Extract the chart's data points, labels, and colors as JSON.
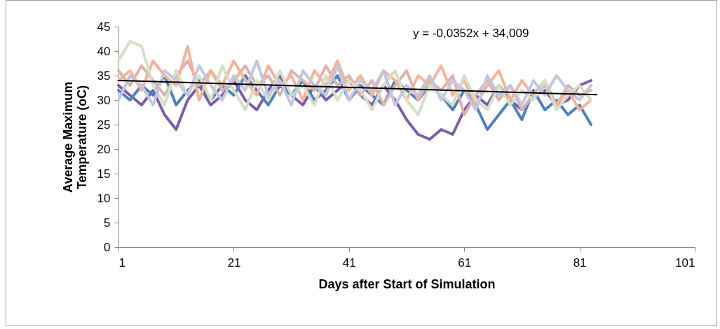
{
  "chart_data": {
    "type": "line",
    "xlabel": "Days after Start of Simulation",
    "ylabel": "Average Maximum Temperature (oC)",
    "x": [
      1,
      3,
      5,
      7,
      9,
      11,
      13,
      15,
      17,
      19,
      21,
      23,
      25,
      27,
      29,
      31,
      33,
      35,
      37,
      39,
      41,
      43,
      45,
      47,
      49,
      51,
      53,
      55,
      57,
      59,
      61,
      63,
      65,
      67,
      69,
      71,
      73,
      75,
      77,
      79,
      81,
      83
    ],
    "series": [
      {
        "color": "#7b5ea7",
        "values": [
          33,
          31,
          29,
          32,
          27,
          24,
          30,
          33,
          29,
          31,
          34,
          30,
          28,
          32,
          35,
          31,
          29,
          33,
          30,
          32,
          34,
          31,
          29,
          33,
          30,
          26,
          23,
          22,
          24,
          23,
          28,
          31,
          29,
          33,
          30,
          28,
          31,
          32,
          29,
          30,
          33,
          34
        ]
      },
      {
        "color": "#4f81bd",
        "values": [
          32,
          30,
          33,
          31,
          35,
          29,
          32,
          34,
          30,
          33,
          31,
          35,
          32,
          29,
          33,
          31,
          34,
          30,
          32,
          35,
          30,
          33,
          31,
          29,
          34,
          32,
          30,
          33,
          31,
          28,
          32,
          29,
          24,
          27,
          30,
          26,
          32,
          28,
          30,
          27,
          29,
          25
        ]
      },
      {
        "color": "#d9b3b0",
        "values": [
          36,
          33,
          37,
          34,
          31,
          35,
          38,
          33,
          36,
          32,
          34,
          37,
          33,
          35,
          31,
          36,
          34,
          32,
          37,
          33,
          35,
          31,
          34,
          29,
          33,
          36,
          30,
          34,
          32,
          35,
          27,
          31,
          34,
          30,
          33,
          28,
          31,
          34,
          29,
          33,
          31,
          32
        ]
      },
      {
        "color": "#f4b49a",
        "values": [
          34,
          36,
          32,
          38,
          35,
          33,
          41,
          30,
          36,
          33,
          38,
          34,
          31,
          37,
          33,
          35,
          30,
          36,
          33,
          38,
          32,
          35,
          31,
          36,
          34,
          30,
          35,
          33,
          37,
          31,
          34,
          29,
          33,
          36,
          30,
          34,
          31,
          33,
          29,
          32,
          28,
          30
        ]
      },
      {
        "color": "#d4e0c4",
        "values": [
          38,
          42,
          41,
          33,
          29,
          36,
          31,
          35,
          30,
          37,
          32,
          28,
          34,
          30,
          36,
          31,
          33,
          29,
          35,
          30,
          34,
          32,
          28,
          33,
          36,
          30,
          27,
          33,
          31,
          29,
          35,
          30,
          28,
          33,
          29,
          32,
          30,
          34,
          28,
          31,
          33,
          30
        ]
      },
      {
        "color": "#c4c6de",
        "values": [
          30,
          35,
          33,
          29,
          36,
          34,
          31,
          37,
          33,
          30,
          35,
          32,
          38,
          31,
          34,
          29,
          36,
          33,
          31,
          37,
          30,
          34,
          32,
          36,
          29,
          33,
          31,
          35,
          30,
          34,
          32,
          28,
          35,
          31,
          33,
          29,
          34,
          31,
          35,
          32,
          30,
          33
        ]
      },
      {
        "type": "line",
        "color": "#000000",
        "x": [
          1,
          84
        ],
        "values": [
          34.0,
          31.1
        ]
      }
    ],
    "xlim": [
      1,
      101
    ],
    "xticks": [
      1,
      21,
      41,
      61,
      81,
      101
    ],
    "ylim": [
      0,
      45
    ],
    "yticks": [
      0,
      5,
      10,
      15,
      20,
      25,
      30,
      35,
      40,
      45
    ],
    "annotations": [
      "y = -0,0352x + 34,009"
    ]
  }
}
